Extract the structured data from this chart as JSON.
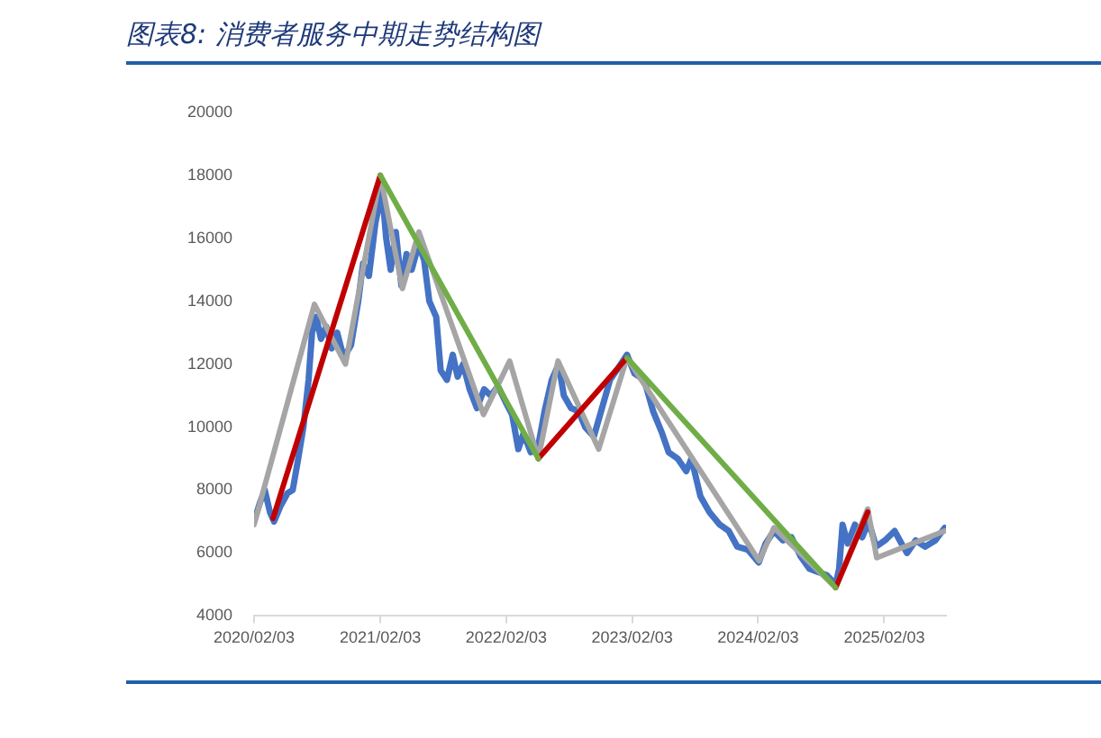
{
  "chart_data": {
    "type": "line",
    "title": "图表8:  消费者服务中期走势结构图",
    "marker": "none",
    "line_style": "solid",
    "xlim": [
      "2020-02-03",
      "2025-08-01"
    ],
    "xticks": [
      {
        "value": "2020-02-03",
        "label": "2020/02/03"
      },
      {
        "value": "2021-02-03",
        "label": "2021/02/03"
      },
      {
        "value": "2022-02-03",
        "label": "2022/02/03"
      },
      {
        "value": "2023-02-03",
        "label": "2023/02/03"
      },
      {
        "value": "2024-02-03",
        "label": "2024/02/03"
      },
      {
        "value": "2025-02-03",
        "label": "2025/02/03"
      }
    ],
    "ylim": [
      4000,
      20000
    ],
    "yticks": [
      4000,
      6000,
      8000,
      10000,
      12000,
      14000,
      16000,
      18000,
      20000
    ],
    "series": [
      {
        "color": "#4472c4",
        "x": [
          "2020-02-03",
          "2020-02-20",
          "2020-03-05",
          "2020-03-20",
          "2020-04-01",
          "2020-04-20",
          "2020-05-10",
          "2020-05-25",
          "2020-06-10",
          "2020-06-25",
          "2020-07-10",
          "2020-07-20",
          "2020-08-01",
          "2020-08-15",
          "2020-08-30",
          "2020-09-15",
          "2020-10-01",
          "2020-10-20",
          "2020-11-10",
          "2020-12-01",
          "2020-12-15",
          "2021-01-01",
          "2021-01-20",
          "2021-02-08",
          "2021-02-20",
          "2021-03-05",
          "2021-03-20",
          "2021-04-05",
          "2021-04-20",
          "2021-05-05",
          "2021-05-25",
          "2021-06-10",
          "2021-06-25",
          "2021-07-15",
          "2021-07-28",
          "2021-08-15",
          "2021-09-01",
          "2021-09-15",
          "2021-10-01",
          "2021-10-20",
          "2021-11-10",
          "2021-12-01",
          "2021-12-20",
          "2022-01-10",
          "2022-02-01",
          "2022-02-20",
          "2022-03-10",
          "2022-03-25",
          "2022-04-15",
          "2022-05-05",
          "2022-05-25",
          "2022-06-15",
          "2022-07-05",
          "2022-07-20",
          "2022-08-10",
          "2022-09-01",
          "2022-09-20",
          "2022-10-15",
          "2022-11-05",
          "2022-12-01",
          "2022-12-20",
          "2023-01-19",
          "2023-02-10",
          "2023-03-10",
          "2023-04-05",
          "2023-05-01",
          "2023-05-20",
          "2023-06-15",
          "2023-07-10",
          "2023-07-25",
          "2023-08-20",
          "2023-09-15",
          "2023-10-15",
          "2023-11-10",
          "2023-12-05",
          "2024-01-05",
          "2024-02-05",
          "2024-02-25",
          "2024-03-20",
          "2024-04-15",
          "2024-05-10",
          "2024-06-05",
          "2024-07-01",
          "2024-07-25",
          "2024-08-20",
          "2024-09-15",
          "2024-09-25",
          "2024-10-05",
          "2024-10-20",
          "2024-11-10",
          "2024-12-01",
          "2024-12-20",
          "2025-01-10",
          "2025-02-05",
          "2025-03-05",
          "2025-03-25",
          "2025-04-10",
          "2025-05-05",
          "2025-06-01",
          "2025-07-01",
          "2025-07-28"
        ],
        "values": [
          7000,
          7600,
          8000,
          7300,
          7000,
          7500,
          7900,
          8000,
          9000,
          10000,
          11500,
          13000,
          13500,
          12800,
          13200,
          12500,
          13000,
          12200,
          12600,
          14000,
          15200,
          14800,
          16500,
          17500,
          16000,
          15000,
          16200,
          14500,
          15500,
          15000,
          15800,
          15300,
          14000,
          13500,
          11800,
          11500,
          12300,
          11600,
          12000,
          11200,
          10600,
          11200,
          11000,
          11300,
          10800,
          10400,
          9300,
          9800,
          9200,
          9300,
          10500,
          11500,
          12000,
          11000,
          10600,
          10500,
          10000,
          9700,
          10500,
          11500,
          11800,
          12300,
          11700,
          11500,
          10500,
          9800,
          9200,
          9000,
          8600,
          9000,
          7800,
          7300,
          6900,
          6700,
          6200,
          6100,
          5700,
          6300,
          6700,
          6400,
          6500,
          5900,
          5500,
          5400,
          5300,
          5000,
          5500,
          6900,
          6300,
          6900,
          6500,
          7000,
          6200,
          6400,
          6700,
          6300,
          6000,
          6400,
          6200,
          6400,
          6800
        ]
      },
      {
        "color": "#a5a5a5",
        "x": [
          "2020-02-03",
          "2020-07-27",
          "2020-10-25",
          "2021-02-03",
          "2021-04-08",
          "2021-05-26",
          "2021-11-29",
          "2022-02-13",
          "2022-05-07",
          "2022-07-03",
          "2022-10-29",
          "2023-01-19",
          "2024-02-06",
          "2024-03-20",
          "2024-09-15",
          "2024-12-17",
          "2025-01-12",
          "2025-07-28"
        ],
        "values": [
          6900,
          13900,
          12000,
          18000,
          14400,
          16200,
          10400,
          12100,
          9000,
          12100,
          9300,
          12200,
          5750,
          6800,
          4900,
          7400,
          5850,
          6700
        ]
      },
      {
        "color": "#c00000",
        "x": [
          "2020-03-29",
          "2021-02-03"
        ],
        "values": [
          7100,
          18000
        ]
      },
      {
        "color": "#c00000",
        "x": [
          "2022-05-07",
          "2023-01-19"
        ],
        "values": [
          9000,
          12200
        ]
      },
      {
        "color": "#c00000",
        "x": [
          "2024-09-15",
          "2024-12-17"
        ],
        "values": [
          4900,
          7300
        ]
      },
      {
        "color": "#70ad47",
        "x": [
          "2021-02-03",
          "2022-05-07"
        ],
        "values": [
          18000,
          9000
        ]
      },
      {
        "color": "#70ad47",
        "x": [
          "2023-01-19",
          "2024-09-15"
        ],
        "values": [
          12200,
          4900
        ]
      }
    ]
  }
}
